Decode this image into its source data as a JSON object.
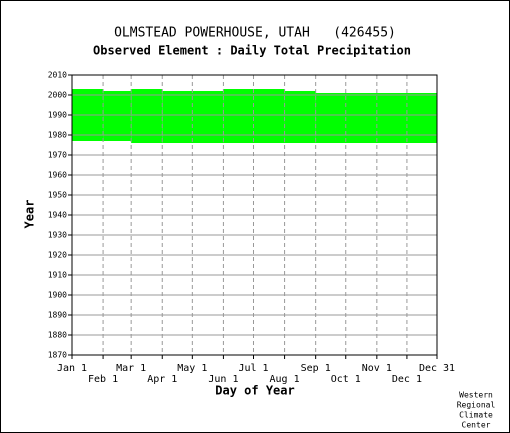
{
  "chart_data": {
    "type": "range",
    "title": "OLMSTEAD POWERHOUSE, UTAH   (426455)",
    "subtitle": "Observed Element : Daily Total Precipitation",
    "x_label": "Day of Year",
    "y_label": "Year",
    "footer": [
      "Western",
      "Regional",
      "Climate",
      "Center"
    ],
    "color": "#00ff00",
    "grid": true,
    "xlim": [
      1,
      365
    ],
    "ylim": [
      1870,
      2010
    ],
    "xticks": [
      {
        "value": 1,
        "label": "Jan 1"
      },
      {
        "value": 32,
        "label": "Feb 1"
      },
      {
        "value": 60,
        "label": "Mar 1"
      },
      {
        "value": 91,
        "label": "Apr 1"
      },
      {
        "value": 121,
        "label": "May 1"
      },
      {
        "value": 152,
        "label": "Jun 1"
      },
      {
        "value": 182,
        "label": "Jul 1"
      },
      {
        "value": 213,
        "label": "Aug 1"
      },
      {
        "value": 244,
        "label": "Sep 1"
      },
      {
        "value": 274,
        "label": "Oct 1"
      },
      {
        "value": 305,
        "label": "Nov 1"
      },
      {
        "value": 335,
        "label": "Dec 1"
      },
      {
        "value": 365,
        "label": "Dec 31"
      }
    ],
    "yticks": [
      1870,
      1880,
      1890,
      1900,
      1910,
      1920,
      1930,
      1940,
      1950,
      1960,
      1970,
      1980,
      1990,
      2000,
      2010
    ],
    "segments": [
      {
        "start": 1,
        "end": 32,
        "low": 1977,
        "high": 2003
      },
      {
        "start": 32,
        "end": 60,
        "low": 1977,
        "high": 2002
      },
      {
        "start": 60,
        "end": 91,
        "low": 1976,
        "high": 2003
      },
      {
        "start": 91,
        "end": 152,
        "low": 1976,
        "high": 2002
      },
      {
        "start": 152,
        "end": 213,
        "low": 1976,
        "high": 2003
      },
      {
        "start": 213,
        "end": 244,
        "low": 1976,
        "high": 2002
      },
      {
        "start": 244,
        "end": 365,
        "low": 1976,
        "high": 2001
      }
    ]
  }
}
